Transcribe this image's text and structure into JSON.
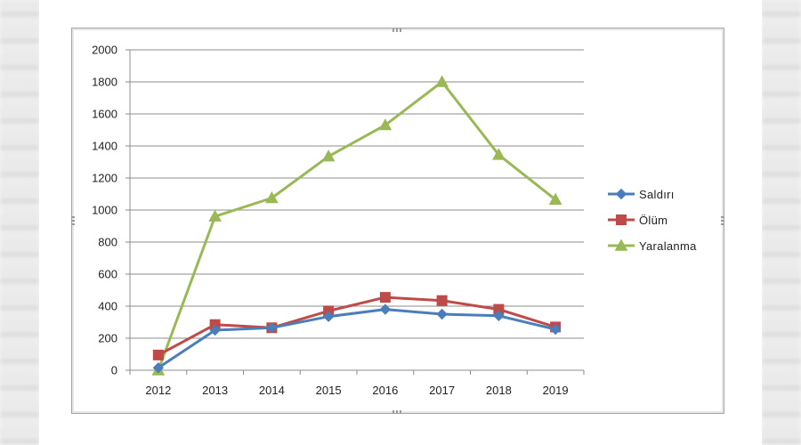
{
  "chart_data": {
    "type": "line",
    "categories": [
      "2012",
      "2013",
      "2014",
      "2015",
      "2016",
      "2017",
      "2018",
      "2019"
    ],
    "ylim": [
      0,
      2000
    ],
    "y_ticks": [
      "0",
      "200",
      "400",
      "600",
      "800",
      "1000",
      "1200",
      "1400",
      "1600",
      "1800",
      "2000"
    ],
    "grid": "horizontal",
    "legend_position": "right",
    "series": [
      {
        "name": "Saldırı",
        "color": "#4a7ebb",
        "marker": "diamond",
        "values": [
          15,
          250,
          265,
          335,
          380,
          350,
          340,
          255
        ]
      },
      {
        "name": "Ölüm",
        "color": "#be4b48",
        "marker": "square",
        "values": [
          95,
          285,
          265,
          370,
          455,
          435,
          380,
          270
        ]
      },
      {
        "name": "Yaralanma",
        "color": "#98b954",
        "marker": "triangle",
        "values": [
          0,
          960,
          1075,
          1335,
          1530,
          1800,
          1345,
          1065
        ]
      }
    ]
  }
}
